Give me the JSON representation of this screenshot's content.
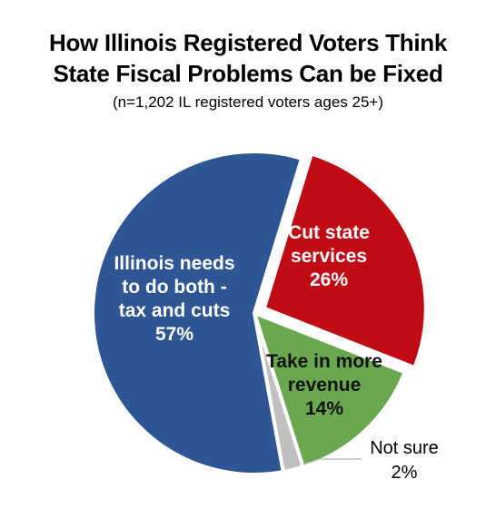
{
  "chart_data": {
    "type": "pie",
    "title_lines": [
      "How Illinois Registered Voters Think",
      "State Fiscal Problems Can be Fixed"
    ],
    "subtitle": "(n=1,202 IL registered voters ages 25+)",
    "slices": [
      {
        "label_lines": [
          "Cut state",
          "services"
        ],
        "value_text": "26%",
        "value": 26,
        "color": "#c00b15",
        "explode": true
      },
      {
        "label_lines": [
          "Take in more",
          "revenue"
        ],
        "value_text": "14%",
        "value": 14,
        "color": "#6aa84f",
        "explode": false
      },
      {
        "label_lines": [
          "Not sure"
        ],
        "value_text": "2%",
        "value": 2,
        "color": "#c0c0c0",
        "explode": false
      },
      {
        "label_lines": [
          "Illinois needs",
          "to do both -",
          "tax and cuts"
        ],
        "value_text": "57%",
        "value": 57,
        "color": "#2f5694",
        "explode": false
      }
    ]
  }
}
